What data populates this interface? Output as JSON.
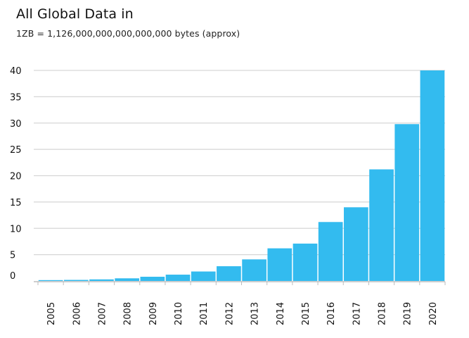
{
  "title": "All Global Data in",
  "subtitle": "1ZB = 1,126,000,000,000,000,000 bytes (approx)",
  "colors": {
    "bar": "#33bbef",
    "grid": "#d6d6d6",
    "axis": "#bdbdbd"
  },
  "chart_data": {
    "type": "bar",
    "title": "All Global Data in",
    "subtitle": "1ZB = 1,126,000,000,000,000,000 bytes (approx)",
    "xlabel": "",
    "ylabel": "",
    "ylim": [
      0,
      40
    ],
    "yticks": [
      0,
      5,
      10,
      15,
      20,
      25,
      30,
      35,
      40
    ],
    "grid": true,
    "legend": "none",
    "categories": [
      "2005",
      "2006",
      "2007",
      "2008",
      "2009",
      "2010",
      "2011",
      "2012",
      "2013",
      "2014",
      "2015",
      "2016",
      "2017",
      "2018",
      "2019",
      "2020"
    ],
    "values": [
      0.1,
      0.2,
      0.3,
      0.5,
      0.8,
      1.2,
      1.8,
      2.8,
      4.1,
      6.2,
      7.1,
      11.2,
      14.0,
      21.2,
      29.8,
      40.0
    ]
  }
}
